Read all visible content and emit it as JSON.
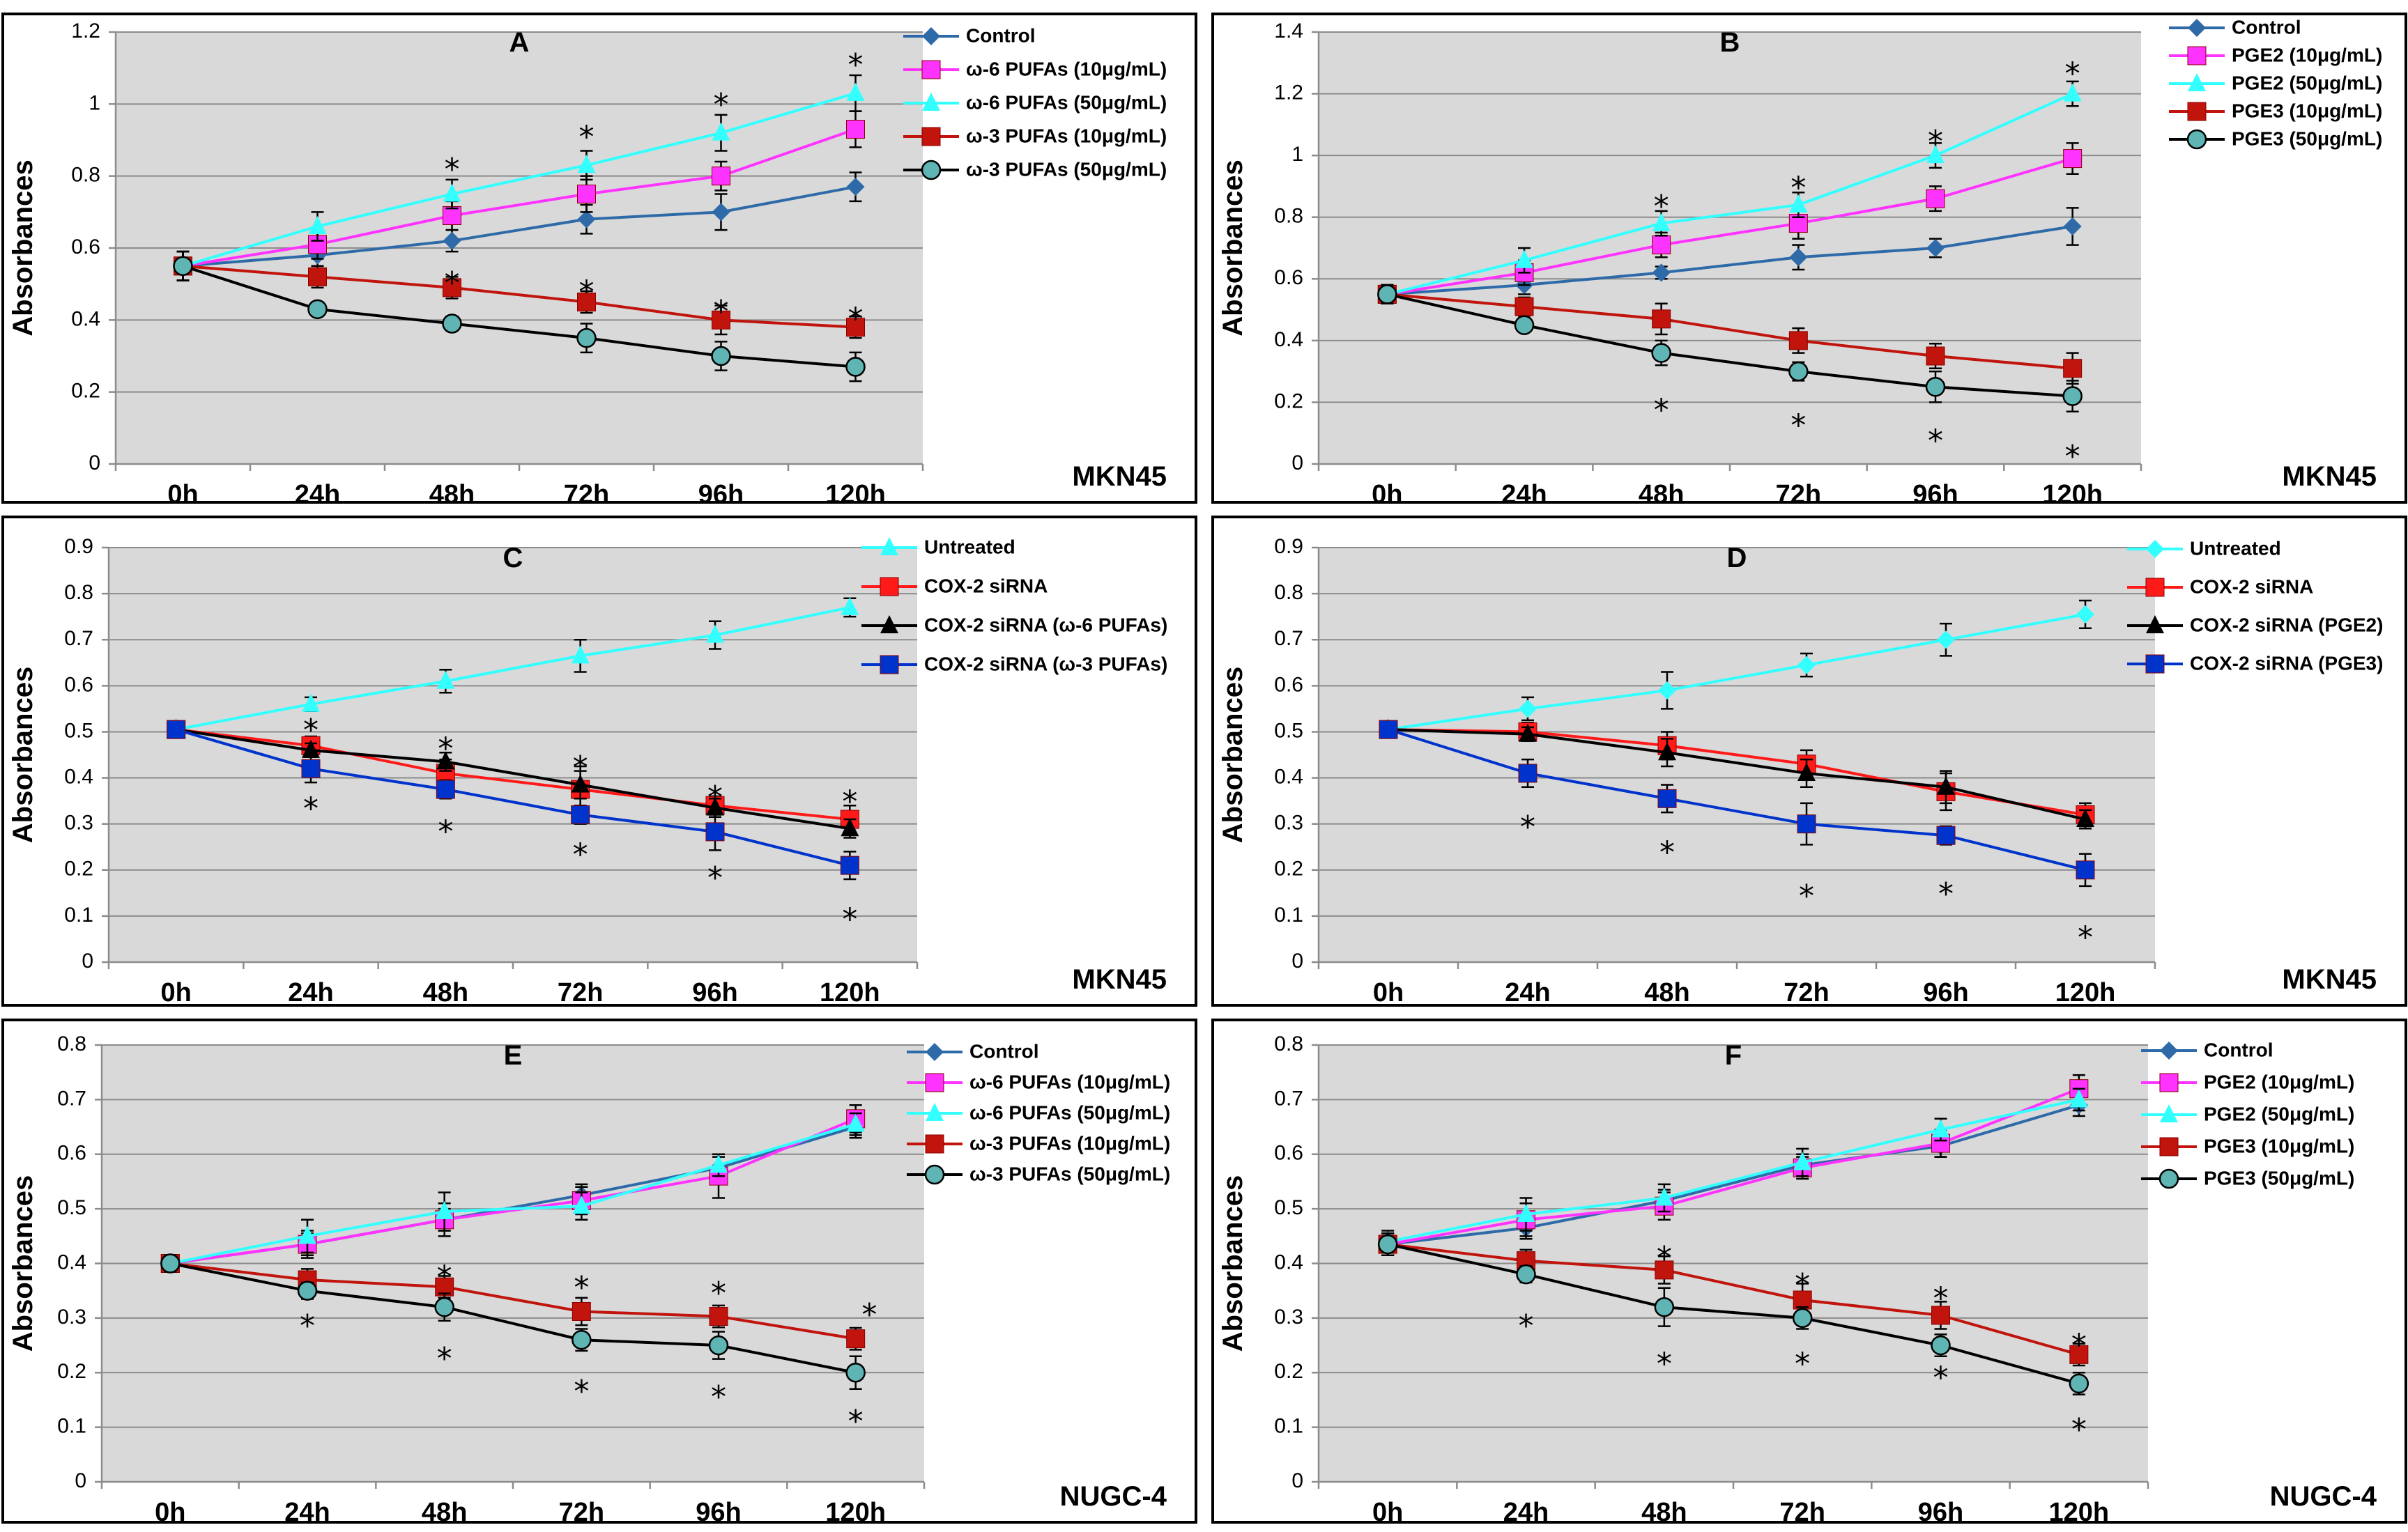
{
  "chart_data": [
    {
      "id": "A",
      "type": "line",
      "title": "A",
      "cell_line": "MKN45",
      "ylabel": "Absorbances",
      "xlabel": "",
      "ylim": [
        0,
        1.2
      ],
      "ytick_step": 0.2,
      "yticks": [
        "0",
        "0.2",
        "0.4",
        "0.6",
        "0.8",
        "1",
        "1.2"
      ],
      "categories": [
        "0h",
        "24h",
        "48h",
        "72h",
        "96h",
        "120h"
      ],
      "series": [
        {
          "name": "Control",
          "color": "#2e6aa8",
          "marker": "diamond",
          "values": [
            0.55,
            0.58,
            0.62,
            0.68,
            0.7,
            0.77
          ],
          "errors": [
            0.04,
            0.03,
            0.03,
            0.04,
            0.05,
            0.04
          ]
        },
        {
          "name": "ω-6 PUFAs (10μg/mL)",
          "color": "#ff33ff",
          "marker": "square",
          "values": [
            0.55,
            0.61,
            0.69,
            0.75,
            0.8,
            0.93
          ],
          "errors": [
            0.04,
            0.04,
            0.04,
            0.05,
            0.04,
            0.05
          ]
        },
        {
          "name": "ω-6 PUFAs (50μg/mL)",
          "color": "#33ffff",
          "marker": "triangle",
          "values": [
            0.55,
            0.66,
            0.75,
            0.83,
            0.92,
            1.03
          ],
          "errors": [
            0.04,
            0.04,
            0.04,
            0.04,
            0.05,
            0.05
          ]
        },
        {
          "name": "ω-3 PUFAs (10μg/mL)",
          "color": "#c0140c",
          "marker": "square",
          "values": [
            0.55,
            0.52,
            0.49,
            0.45,
            0.4,
            0.38
          ],
          "errors": [
            0.04,
            0.03,
            0.03,
            0.03,
            0.04,
            0.03
          ]
        },
        {
          "name": "ω-3 PUFAs (50μg/mL)",
          "color": "#000000",
          "marker": "circle",
          "values": [
            0.55,
            0.43,
            0.39,
            0.35,
            0.3,
            0.27
          ],
          "errors": [
            0.04,
            0.02,
            0.02,
            0.04,
            0.04,
            0.04
          ]
        }
      ],
      "stars": [
        {
          "x": 2,
          "y": 0.84
        },
        {
          "x": 2,
          "y": 0.525
        },
        {
          "x": 3,
          "y": 0.93
        },
        {
          "x": 3,
          "y": 0.5
        },
        {
          "x": 4,
          "y": 1.02
        },
        {
          "x": 4,
          "y": 0.445
        },
        {
          "x": 5,
          "y": 1.13
        },
        {
          "x": 5,
          "y": 0.425
        }
      ],
      "stars_text": "*"
    },
    {
      "id": "B",
      "type": "line",
      "title": "B",
      "cell_line": "MKN45",
      "ylabel": "Absorbances",
      "xlabel": "",
      "ylim": [
        0,
        1.4
      ],
      "ytick_step": 0.2,
      "yticks": [
        "0",
        "0.2",
        "0.4",
        "0.6",
        "0.8",
        "1",
        "1.2",
        "1.4"
      ],
      "categories": [
        "0h",
        "24h",
        "48h",
        "72h",
        "96h",
        "120h"
      ],
      "series": [
        {
          "name": "Control",
          "color": "#2e6aa8",
          "marker": "diamond",
          "values": [
            0.55,
            0.58,
            0.62,
            0.67,
            0.7,
            0.77
          ],
          "errors": [
            0.03,
            0.03,
            0.02,
            0.04,
            0.03,
            0.06
          ]
        },
        {
          "name": "PGE2 (10μg/mL)",
          "color": "#ff33ff",
          "marker": "square",
          "values": [
            0.55,
            0.62,
            0.71,
            0.78,
            0.86,
            0.99
          ],
          "errors": [
            0.03,
            0.04,
            0.04,
            0.05,
            0.04,
            0.05
          ]
        },
        {
          "name": "PGE2 (50μg/mL)",
          "color": "#33ffff",
          "marker": "triangle",
          "values": [
            0.55,
            0.66,
            0.78,
            0.84,
            1.0,
            1.2
          ],
          "errors": [
            0.03,
            0.04,
            0.04,
            0.04,
            0.04,
            0.04
          ]
        },
        {
          "name": "PGE3 (10μg/mL)",
          "color": "#c0140c",
          "marker": "square",
          "values": [
            0.55,
            0.51,
            0.47,
            0.4,
            0.35,
            0.31
          ],
          "errors": [
            0.03,
            0.03,
            0.05,
            0.04,
            0.04,
            0.05
          ]
        },
        {
          "name": "PGE3 (50μg/mL)",
          "color": "#000000",
          "marker": "circle",
          "values": [
            0.55,
            0.45,
            0.36,
            0.3,
            0.25,
            0.22
          ],
          "errors": [
            0.03,
            0.02,
            0.04,
            0.03,
            0.05,
            0.05
          ]
        }
      ],
      "stars": [
        {
          "x": 2,
          "y": 0.86
        },
        {
          "x": 2,
          "y": 0.2
        },
        {
          "x": 3,
          "y": 0.92
        },
        {
          "x": 3,
          "y": 0.15
        },
        {
          "x": 4,
          "y": 1.07
        },
        {
          "x": 4,
          "y": 0.1
        },
        {
          "x": 5,
          "y": 1.29
        },
        {
          "x": 5,
          "y": 0.05
        }
      ],
      "stars_text": "*"
    },
    {
      "id": "C",
      "type": "line",
      "title": "C",
      "cell_line": "MKN45",
      "ylabel": "Absorbances",
      "xlabel": "",
      "ylim": [
        0,
        0.9
      ],
      "ytick_step": 0.1,
      "yticks": [
        "0",
        "0.1",
        "0.2",
        "0.3",
        "0.4",
        "0.5",
        "0.6",
        "0.7",
        "0.8",
        "0.9"
      ],
      "categories": [
        "0h",
        "24h",
        "48h",
        "72h",
        "96h",
        "120h"
      ],
      "series": [
        {
          "name": "Untreated",
          "color": "#33ffff",
          "marker": "triangle",
          "values": [
            0.505,
            0.56,
            0.61,
            0.665,
            0.71,
            0.77
          ],
          "errors": [
            0.015,
            0.015,
            0.025,
            0.035,
            0.03,
            0.02
          ]
        },
        {
          "name": "COX-2 siRNA",
          "color": "#ff1a1a",
          "marker": "square",
          "values": [
            0.505,
            0.47,
            0.41,
            0.375,
            0.34,
            0.31
          ],
          "errors": [
            0.015,
            0.02,
            0.03,
            0.05,
            0.02,
            0.03
          ]
        },
        {
          "name": "COX-2 siRNA (ω-6 PUFAs)",
          "color": "#000000",
          "marker": "triangle",
          "values": [
            0.505,
            0.46,
            0.435,
            0.385,
            0.335,
            0.29
          ],
          "errors": [
            0.015,
            0.015,
            0.02,
            0.03,
            0.02,
            0.02
          ]
        },
        {
          "name": "COX-2 siRNA (ω-3 PUFAs)",
          "color": "#0033cc",
          "marker": "square",
          "values": [
            0.505,
            0.42,
            0.375,
            0.32,
            0.283,
            0.21
          ],
          "errors": [
            0.015,
            0.03,
            0.02,
            0.02,
            0.04,
            0.03
          ]
        }
      ],
      "stars": [
        {
          "x": 1,
          "y": 0.52
        },
        {
          "x": 1,
          "y": 0.35
        },
        {
          "x": 2,
          "y": 0.48
        },
        {
          "x": 2,
          "y": 0.3
        },
        {
          "x": 3,
          "y": 0.44
        },
        {
          "x": 3,
          "y": 0.25
        },
        {
          "x": 4,
          "y": 0.375
        },
        {
          "x": 4,
          "y": 0.2
        },
        {
          "x": 5,
          "y": 0.365
        },
        {
          "x": 5,
          "y": 0.11
        }
      ],
      "stars_text": "*"
    },
    {
      "id": "D",
      "type": "line",
      "title": "D",
      "cell_line": "MKN45",
      "ylabel": "Absorbances",
      "xlabel": "",
      "ylim": [
        0,
        0.9
      ],
      "ytick_step": 0.1,
      "yticks": [
        "0",
        "0.1",
        "0.2",
        "0.3",
        "0.4",
        "0.5",
        "0.6",
        "0.7",
        "0.8",
        "0.9"
      ],
      "categories": [
        "0h",
        "24h",
        "48h",
        "72h",
        "96h",
        "120h"
      ],
      "series": [
        {
          "name": "Untreated",
          "color": "#33ffff",
          "marker": "diamond",
          "values": [
            0.505,
            0.55,
            0.59,
            0.645,
            0.7,
            0.755
          ],
          "errors": [
            0.01,
            0.025,
            0.04,
            0.025,
            0.035,
            0.03
          ]
        },
        {
          "name": "COX-2 siRNA",
          "color": "#ff1a1a",
          "marker": "square",
          "values": [
            0.505,
            0.5,
            0.47,
            0.43,
            0.37,
            0.32
          ],
          "errors": [
            0.01,
            0.02,
            0.03,
            0.03,
            0.04,
            0.025
          ]
        },
        {
          "name": "COX-2 siRNA (PGE2)",
          "color": "#000000",
          "marker": "triangle",
          "values": [
            0.505,
            0.495,
            0.455,
            0.41,
            0.38,
            0.31
          ],
          "errors": [
            0.01,
            0.015,
            0.03,
            0.03,
            0.035,
            0.02
          ]
        },
        {
          "name": "COX-2 siRNA (PGE3)",
          "color": "#0033cc",
          "marker": "square",
          "values": [
            0.505,
            0.41,
            0.355,
            0.3,
            0.275,
            0.2
          ],
          "errors": [
            0.01,
            0.03,
            0.03,
            0.045,
            0.02,
            0.035
          ]
        }
      ],
      "stars": [
        {
          "x": 1,
          "y": 0.31
        },
        {
          "x": 2,
          "y": 0.255
        },
        {
          "x": 3,
          "y": 0.16
        },
        {
          "x": 4,
          "y": 0.165
        },
        {
          "x": 5,
          "y": 0.07
        }
      ],
      "stars_text": "*"
    },
    {
      "id": "E",
      "type": "line",
      "title": "E",
      "cell_line": "NUGC-4",
      "ylabel": "Absorbances",
      "xlabel": "",
      "ylim": [
        0,
        0.8
      ],
      "ytick_step": 0.1,
      "yticks": [
        "0",
        "0.1",
        "0.2",
        "0.3",
        "0.4",
        "0.5",
        "0.6",
        "0.7",
        "0.8"
      ],
      "categories": [
        "0h",
        "24h",
        "48h",
        "72h",
        "96h",
        "120h"
      ],
      "series": [
        {
          "name": "Control",
          "color": "#2e6aa8",
          "marker": "diamond",
          "values": [
            0.4,
            0.435,
            0.48,
            0.525,
            0.575,
            0.65
          ],
          "errors": [
            0.015,
            0.02,
            0.02,
            0.02,
            0.02,
            0.02
          ]
        },
        {
          "name": "ω-6 PUFAs (10μg/mL)",
          "color": "#ff33ff",
          "marker": "square",
          "values": [
            0.4,
            0.435,
            0.48,
            0.515,
            0.56,
            0.665
          ],
          "errors": [
            0.015,
            0.025,
            0.03,
            0.025,
            0.04,
            0.025
          ]
        },
        {
          "name": "ω-6 PUFAs (50μg/mL)",
          "color": "#33ffff",
          "marker": "triangle",
          "values": [
            0.4,
            0.45,
            0.495,
            0.505,
            0.58,
            0.655
          ],
          "errors": [
            0.015,
            0.03,
            0.035,
            0.025,
            0.02,
            0.02
          ]
        },
        {
          "name": "ω-3 PUFAs (10μg/mL)",
          "color": "#c0140c",
          "marker": "square",
          "values": [
            0.4,
            0.37,
            0.357,
            0.312,
            0.303,
            0.262
          ],
          "errors": [
            0.015,
            0.02,
            0.02,
            0.025,
            0.02,
            0.02
          ]
        },
        {
          "name": "ω-3 PUFAs (50μg/mL)",
          "color": "#000000",
          "marker": "circle",
          "values": [
            0.4,
            0.35,
            0.32,
            0.26,
            0.25,
            0.2
          ],
          "errors": [
            0.015,
            0.015,
            0.025,
            0.02,
            0.025,
            0.03
          ]
        }
      ],
      "stars": [
        {
          "x": 1,
          "y": 0.3
        },
        {
          "x": 2,
          "y": 0.39
        },
        {
          "x": 2,
          "y": 0.24
        },
        {
          "x": 3,
          "y": 0.37
        },
        {
          "x": 3,
          "y": 0.18
        },
        {
          "x": 4,
          "y": 0.36
        },
        {
          "x": 4,
          "y": 0.17
        },
        {
          "x": 5.1,
          "y": 0.32
        },
        {
          "x": 5,
          "y": 0.125
        }
      ],
      "stars_text": "*"
    },
    {
      "id": "F",
      "type": "line",
      "title": "F",
      "cell_line": "NUGC-4",
      "ylabel": "Absorbances",
      "xlabel": "",
      "ylim": [
        0,
        0.8
      ],
      "ytick_step": 0.1,
      "yticks": [
        "0",
        "0.1",
        "0.2",
        "0.3",
        "0.4",
        "0.5",
        "0.6",
        "0.7",
        "0.8"
      ],
      "categories": [
        "0h",
        "24h",
        "48h",
        "72h",
        "96h",
        "120h"
      ],
      "series": [
        {
          "name": "Control",
          "color": "#2e6aa8",
          "marker": "diamond",
          "values": [
            0.435,
            0.465,
            0.515,
            0.58,
            0.615,
            0.69
          ],
          "errors": [
            0.02,
            0.02,
            0.02,
            0.02,
            0.02,
            0.02
          ]
        },
        {
          "name": "PGE2 (10μg/mL)",
          "color": "#ff33ff",
          "marker": "square",
          "values": [
            0.435,
            0.48,
            0.505,
            0.575,
            0.62,
            0.72
          ],
          "errors": [
            0.02,
            0.03,
            0.025,
            0.02,
            0.025,
            0.025
          ]
        },
        {
          "name": "PGE2 (50μg/mL)",
          "color": "#33ffff",
          "marker": "triangle",
          "values": [
            0.44,
            0.49,
            0.52,
            0.585,
            0.645,
            0.7
          ],
          "errors": [
            0.02,
            0.03,
            0.025,
            0.025,
            0.02,
            0.02
          ]
        },
        {
          "name": "PGE3 (10μg/mL)",
          "color": "#c0140c",
          "marker": "square",
          "values": [
            0.435,
            0.405,
            0.388,
            0.333,
            0.305,
            0.233
          ],
          "errors": [
            0.02,
            0.02,
            0.025,
            0.03,
            0.025,
            0.02
          ]
        },
        {
          "name": "PGE3 (50μg/mL)",
          "color": "#000000",
          "marker": "circle",
          "values": [
            0.435,
            0.38,
            0.32,
            0.3,
            0.25,
            0.18
          ],
          "errors": [
            0.02,
            0.015,
            0.035,
            0.02,
            0.02,
            0.02
          ]
        }
      ],
      "stars": [
        {
          "x": 1,
          "y": 0.3
        },
        {
          "x": 2,
          "y": 0.425
        },
        {
          "x": 2,
          "y": 0.23
        },
        {
          "x": 3,
          "y": 0.375
        },
        {
          "x": 3,
          "y": 0.23
        },
        {
          "x": 4,
          "y": 0.35
        },
        {
          "x": 4,
          "y": 0.205
        },
        {
          "x": 5,
          "y": 0.265
        },
        {
          "x": 5,
          "y": 0.11
        }
      ],
      "stars_text": "*"
    }
  ]
}
